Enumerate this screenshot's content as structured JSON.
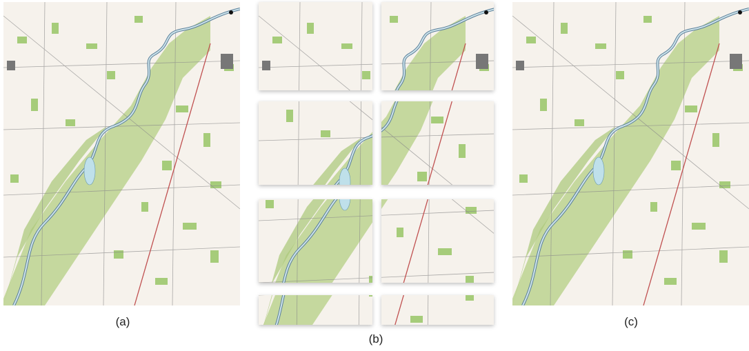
{
  "captions": {
    "a": "(a)",
    "b": "(b)",
    "c": "(c)"
  }
}
